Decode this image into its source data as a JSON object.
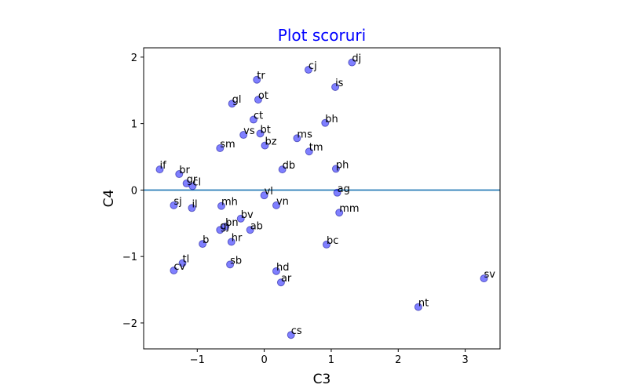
{
  "chart_data": {
    "type": "scatter",
    "title": "Plot scoruri",
    "xlabel": "C3",
    "ylabel": "C4",
    "xlim": [
      -1.8,
      3.52
    ],
    "ylim": [
      -2.39,
      2.14
    ],
    "x_ticks": [
      -1,
      0,
      1,
      2,
      3
    ],
    "y_ticks": [
      -2,
      -1,
      0,
      1,
      2
    ],
    "x_tick_labels": [
      "−1",
      "0",
      "1",
      "2",
      "3"
    ],
    "y_tick_labels": [
      "−2",
      "−1",
      "0",
      "1",
      "2"
    ],
    "hline_y": 0,
    "grid": false,
    "colors": {
      "title": "#0000ff",
      "marker": "#0000ff",
      "marker_edge": "#00008b",
      "hline": "#1f77b4"
    },
    "points": [
      {
        "label": "dj",
        "x": 1.31,
        "y": 1.92
      },
      {
        "label": "cj",
        "x": 0.66,
        "y": 1.81
      },
      {
        "label": "tr",
        "x": -0.11,
        "y": 1.66
      },
      {
        "label": "is",
        "x": 1.06,
        "y": 1.55
      },
      {
        "label": "ot",
        "x": -0.09,
        "y": 1.36
      },
      {
        "label": "gl",
        "x": -0.48,
        "y": 1.3
      },
      {
        "label": "ct",
        "x": -0.16,
        "y": 1.06
      },
      {
        "label": "bh",
        "x": 0.91,
        "y": 1.01
      },
      {
        "label": "bt",
        "x": -0.06,
        "y": 0.85
      },
      {
        "label": "vs",
        "x": -0.31,
        "y": 0.83
      },
      {
        "label": "ms",
        "x": 0.49,
        "y": 0.78
      },
      {
        "label": "bz",
        "x": 0.01,
        "y": 0.67
      },
      {
        "label": "sm",
        "x": -0.66,
        "y": 0.63
      },
      {
        "label": "tm",
        "x": 0.67,
        "y": 0.58
      },
      {
        "label": "if",
        "x": -1.56,
        "y": 0.31
      },
      {
        "label": "ph",
        "x": 1.07,
        "y": 0.32
      },
      {
        "label": "db",
        "x": 0.27,
        "y": 0.31
      },
      {
        "label": "br",
        "x": -1.27,
        "y": 0.24
      },
      {
        "label": "gr",
        "x": -1.16,
        "y": 0.1
      },
      {
        "label": "cl",
        "x": -1.07,
        "y": 0.06
      },
      {
        "label": "ag",
        "x": 1.09,
        "y": -0.04
      },
      {
        "label": "vl",
        "x": 0.0,
        "y": -0.08
      },
      {
        "label": "sj",
        "x": -1.35,
        "y": -0.23
      },
      {
        "label": "mh",
        "x": -0.64,
        "y": -0.24
      },
      {
        "label": "vn",
        "x": 0.18,
        "y": -0.23
      },
      {
        "label": "il",
        "x": -1.08,
        "y": -0.27
      },
      {
        "label": "mm",
        "x": 1.12,
        "y": -0.34
      },
      {
        "label": "bv",
        "x": -0.35,
        "y": -0.43
      },
      {
        "label": "bn",
        "x": -0.58,
        "y": -0.55
      },
      {
        "label": "gj",
        "x": -0.66,
        "y": -0.6
      },
      {
        "label": "ab",
        "x": -0.21,
        "y": -0.6
      },
      {
        "label": "hr",
        "x": -0.49,
        "y": -0.78
      },
      {
        "label": "b",
        "x": -0.92,
        "y": -0.81
      },
      {
        "label": "bc",
        "x": 0.93,
        "y": -0.82
      },
      {
        "label": "tl",
        "x": -1.22,
        "y": -1.1
      },
      {
        "label": "sb",
        "x": -0.51,
        "y": -1.12
      },
      {
        "label": "cv",
        "x": -1.35,
        "y": -1.21
      },
      {
        "label": "hd",
        "x": 0.18,
        "y": -1.22
      },
      {
        "label": "sv",
        "x": 3.28,
        "y": -1.33
      },
      {
        "label": "ar",
        "x": 0.25,
        "y": -1.39
      },
      {
        "label": "nt",
        "x": 2.3,
        "y": -1.76
      },
      {
        "label": "cs",
        "x": 0.4,
        "y": -2.18
      }
    ]
  }
}
